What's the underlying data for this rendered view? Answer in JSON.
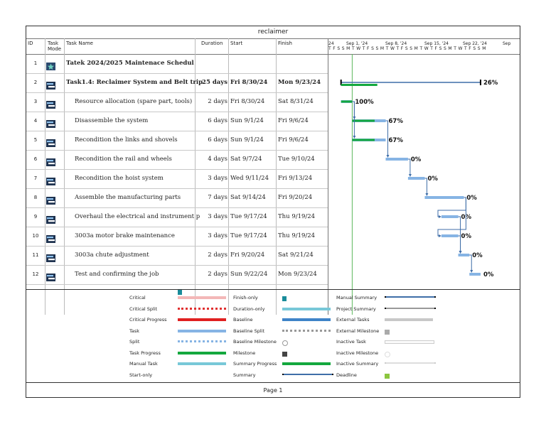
{
  "title": "reclaimer",
  "footer": "Page 1",
  "headers": {
    "id": "ID",
    "mode_1": "Task",
    "mode_2": "Mode",
    "name": "Task Name",
    "duration": "Duration",
    "start": "Start",
    "finish": "Finish"
  },
  "timescale": {
    "weeks": [
      "24",
      "Sep 1, '24",
      "Sep 8, '24",
      "Sep 15, '24",
      "Sep 22, '24",
      "Sep"
    ],
    "days": "T F S S M T W T F S S M T W T F S S M T W T F S S M T W T F S S M"
  },
  "colors": {
    "task_bar": "#86b4e4",
    "progress": "#14a83e",
    "summary": "#3f6ea8",
    "milestone_line": "#5cb85c"
  },
  "tasks": [
    {
      "id": "1",
      "icon": "summary-icon",
      "name": "Tatek 2024/2025 Maintenace Schedul",
      "duration": "",
      "start": "",
      "finish": "",
      "bold": true,
      "pct": ""
    },
    {
      "id": "2",
      "icon": "task-mode-icon",
      "name": "Task1.4: Reclaimer System and Belt trip",
      "duration": "25 days",
      "start": "Fri 8/30/24",
      "finish": "Mon 9/23/24",
      "bold": true,
      "pct": "26%"
    },
    {
      "id": "3",
      "icon": "task-mode-icon",
      "name": "Resource allocation (spare part, tools)",
      "duration": "2 days",
      "start": "Fri 8/30/24",
      "finish": "Sat 8/31/24",
      "bold": false,
      "pct": "100%"
    },
    {
      "id": "4",
      "icon": "task-mode-icon",
      "name": "Disassemble the system",
      "duration": "6 days",
      "start": "Sun 9/1/24",
      "finish": "Fri 9/6/24",
      "bold": false,
      "pct": "67%"
    },
    {
      "id": "5",
      "icon": "task-mode-icon",
      "name": "Recondition the links and shovels",
      "duration": "6 days",
      "start": "Sun 9/1/24",
      "finish": "Fri 9/6/24",
      "bold": false,
      "pct": "67%"
    },
    {
      "id": "6",
      "icon": "task-mode-icon",
      "name": "Recondition the rail and wheels",
      "duration": "4 days",
      "start": "Sat 9/7/24",
      "finish": "Tue 9/10/24",
      "bold": false,
      "pct": "0%"
    },
    {
      "id": "7",
      "icon": "task-mode-icon",
      "name": "Recondition the hoist system",
      "duration": "3 days",
      "start": "Wed 9/11/24",
      "finish": "Fri 9/13/24",
      "bold": false,
      "pct": "0%"
    },
    {
      "id": "8",
      "icon": "task-mode-icon",
      "name": "Assemble the manufacturing parts",
      "duration": "7 days",
      "start": "Sat 9/14/24",
      "finish": "Fri 9/20/24",
      "bold": false,
      "pct": "0%"
    },
    {
      "id": "9",
      "icon": "task-mode-icon",
      "name": "Overhaul the electrical and instrument p",
      "duration": "3 days",
      "start": "Tue 9/17/24",
      "finish": "Thu 9/19/24",
      "bold": false,
      "pct": "0%"
    },
    {
      "id": "10",
      "icon": "task-mode-icon",
      "name": "3003a motor brake maintenance",
      "duration": "3 days",
      "start": "Tue 9/17/24",
      "finish": "Thu 9/19/24",
      "bold": false,
      "pct": "0%"
    },
    {
      "id": "11",
      "icon": "task-mode-icon",
      "name": "3003a chute adjustment",
      "duration": "2 days",
      "start": "Fri 9/20/24",
      "finish": "Sat 9/21/24",
      "bold": false,
      "pct": "0%"
    },
    {
      "id": "12",
      "icon": "task-mode-icon",
      "name": "Test and confirming the job",
      "duration": "2 days",
      "start": "Sun 9/22/24",
      "finish": "Mon 9/23/24",
      "bold": false,
      "pct": "0%"
    }
  ],
  "legend": {
    "col1": [
      "Critical",
      "Critical Split",
      "Critical Progress",
      "Task",
      "Split",
      "Task Progress",
      "Manual Task",
      "Start-only"
    ],
    "col2": [
      "Finish-only",
      "Duration-only",
      "Baseline",
      "Baseline Split",
      "Baseline Milestone",
      "Milestone",
      "Summary Progress",
      "Summary"
    ],
    "col3": [
      "Manual Summary",
      "Project Summary",
      "External Tasks",
      "External Milestone",
      "Inactive Task",
      "Inactive Milestone",
      "Inactive Summary",
      "Deadline"
    ]
  }
}
